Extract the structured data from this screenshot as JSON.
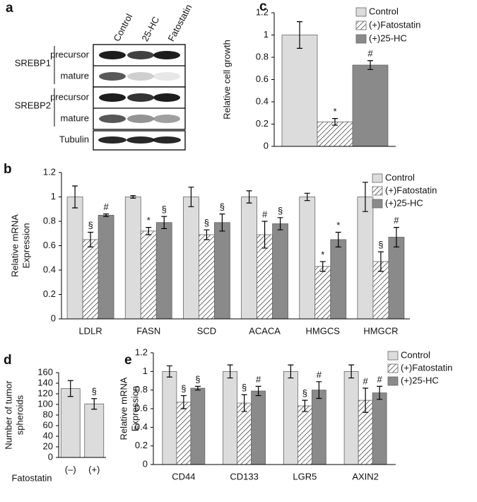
{
  "blot": {
    "panel": "a",
    "lanes": [
      "Control",
      "25-HC",
      "Fatostatin"
    ],
    "groups": [
      {
        "name": "SREBP1",
        "rows": [
          "precursor",
          "mature"
        ]
      },
      {
        "name": "SREBP2",
        "rows": [
          "precursor",
          "mature"
        ]
      }
    ],
    "loading_control": "Tubulin"
  },
  "chart_data": [
    {
      "type": "bar",
      "panel": "b",
      "ylabel": [
        "Relative mRNA",
        "Expression"
      ],
      "categories": [
        "LDLR",
        "FASN",
        "SCD",
        "ACACA",
        "HMGCS",
        "HMGCR"
      ],
      "ylim": [
        0,
        1.2
      ],
      "yticks": [
        0,
        0.2,
        0.4,
        0.6,
        0.8,
        1,
        1.2
      ],
      "legend": "right",
      "series": [
        {
          "name": "Control",
          "color": "#dcdcdc",
          "values": [
            1,
            1,
            1,
            1,
            1,
            1
          ],
          "errors": [
            0.09,
            0.01,
            0.08,
            0.05,
            0.03,
            0.12
          ]
        },
        {
          "name": "(+)Fatostatin",
          "color": "#ffffff",
          "hatch": true,
          "values": [
            0.65,
            0.72,
            0.69,
            0.69,
            0.43,
            0.47
          ],
          "errors": [
            0.06,
            0.03,
            0.04,
            0.11,
            0.04,
            0.08
          ],
          "annotations": [
            "§",
            "*",
            "§",
            "#",
            "*",
            "§"
          ]
        },
        {
          "name": "(+)25-HC",
          "color": "#8a8a8a",
          "values": [
            0.85,
            0.79,
            0.79,
            0.78,
            0.65,
            0.67
          ],
          "errors": [
            0.01,
            0.05,
            0.07,
            0.05,
            0.06,
            0.08
          ],
          "annotations": [
            "#",
            "§",
            "§",
            "§",
            "*",
            "#"
          ]
        }
      ]
    },
    {
      "type": "bar",
      "panel": "c",
      "ylabel": [
        "Relative cell growth"
      ],
      "categories": [
        null
      ],
      "ylim": [
        0,
        1.2
      ],
      "yticks": [
        0,
        0.2,
        0.4,
        0.6,
        0.8,
        1,
        1.2
      ],
      "legend": "right",
      "series": [
        {
          "name": "Control",
          "color": "#dcdcdc",
          "values": [
            1
          ],
          "errors": [
            0.12
          ]
        },
        {
          "name": "(+)Fatostatin",
          "color": "#ffffff",
          "hatch": true,
          "values": [
            0.22
          ],
          "errors": [
            0.03
          ],
          "annotations": [
            "*"
          ]
        },
        {
          "name": "(+)25-HC",
          "color": "#8a8a8a",
          "values": [
            0.73
          ],
          "errors": [
            0.04
          ],
          "annotations": [
            "#"
          ]
        }
      ]
    },
    {
      "type": "bar",
      "panel": "d",
      "ylabel": [
        "Number of tumor",
        "spheroids"
      ],
      "xlabel": "Fatostatin",
      "categories": [
        "(–)",
        "(+)"
      ],
      "ylim": [
        0,
        160
      ],
      "yticks": [
        0,
        20,
        40,
        60,
        80,
        100,
        120,
        140,
        160
      ],
      "series": [
        {
          "color": "#dcdcdc",
          "values": [
            130,
            101
          ],
          "errors": [
            15,
            10
          ],
          "annotations": [
            null,
            "§"
          ]
        }
      ]
    },
    {
      "type": "bar",
      "panel": "e",
      "ylabel": [
        "Relative mRNA",
        "Expression"
      ],
      "categories": [
        "CD44",
        "CD133",
        "LGR5",
        "AXIN2"
      ],
      "ylim": [
        0,
        1.2
      ],
      "yticks": [
        0,
        0.2,
        0.4,
        0.6,
        0.8,
        1,
        1.2
      ],
      "legend": "right",
      "series": [
        {
          "name": "Control",
          "color": "#dcdcdc",
          "values": [
            1,
            1,
            1,
            1
          ],
          "errors": [
            0.06,
            0.07,
            0.07,
            0.07
          ]
        },
        {
          "name": "(+)Fatostatin",
          "color": "#ffffff",
          "hatch": true,
          "values": [
            0.67,
            0.66,
            0.63,
            0.69
          ],
          "errors": [
            0.07,
            0.09,
            0.06,
            0.13
          ],
          "annotations": [
            "§",
            "§",
            "§",
            "#"
          ]
        },
        {
          "name": "(+)25-HC",
          "color": "#8a8a8a",
          "values": [
            0.82,
            0.79,
            0.8,
            0.77
          ],
          "errors": [
            0.02,
            0.05,
            0.09,
            0.07
          ],
          "annotations": [
            "§",
            "#",
            "#",
            "#"
          ]
        }
      ]
    }
  ]
}
